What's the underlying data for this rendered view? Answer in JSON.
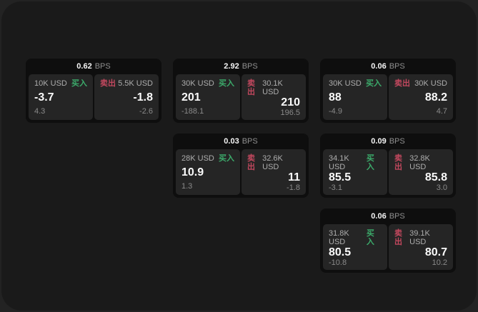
{
  "board": {
    "unit_label": "BPS",
    "buy_label": "买入",
    "sell_label": "卖出",
    "colors": {
      "buy": "#3cab6b",
      "sell": "#c2485e",
      "page_bg": "#232323",
      "panel_bg": "#1a1a1a",
      "card_bg": "#0e0e0e",
      "tile_bg": "#252525"
    },
    "cards": [
      {
        "bps": "0.62",
        "col": 1,
        "row": 1,
        "buy": {
          "notional": "10K USD",
          "value": "-3.7",
          "footer": "4.3"
        },
        "sell": {
          "notional": "5.5K USD",
          "value": "-1.8",
          "footer": "-2.6"
        }
      },
      {
        "bps": "2.92",
        "col": 2,
        "row": 1,
        "buy": {
          "notional": "30K USD",
          "value": "201",
          "footer": "-188.1"
        },
        "sell": {
          "notional": "30.1K USD",
          "value": "210",
          "footer": "196.5"
        }
      },
      {
        "bps": "0.06",
        "col": 3,
        "row": 1,
        "buy": {
          "notional": "30K USD",
          "value": "88",
          "footer": "-4.9"
        },
        "sell": {
          "notional": "30K USD",
          "value": "88.2",
          "footer": "4.7"
        }
      },
      {
        "bps": "0.03",
        "col": 2,
        "row": 2,
        "buy": {
          "notional": "28K USD",
          "value": "10.9",
          "footer": "1.3"
        },
        "sell": {
          "notional": "32.6K USD",
          "value": "11",
          "footer": "-1.8"
        }
      },
      {
        "bps": "0.09",
        "col": 3,
        "row": 2,
        "buy": {
          "notional": "34.1K USD",
          "value": "85.5",
          "footer": "-3.1"
        },
        "sell": {
          "notional": "32.8K USD",
          "value": "85.8",
          "footer": "3.0"
        }
      },
      {
        "bps": "0.06",
        "col": 3,
        "row": 3,
        "buy": {
          "notional": "31.8K USD",
          "value": "80.5",
          "footer": "-10.8"
        },
        "sell": {
          "notional": "39.1K USD",
          "value": "80.7",
          "footer": "10.2"
        }
      }
    ]
  }
}
